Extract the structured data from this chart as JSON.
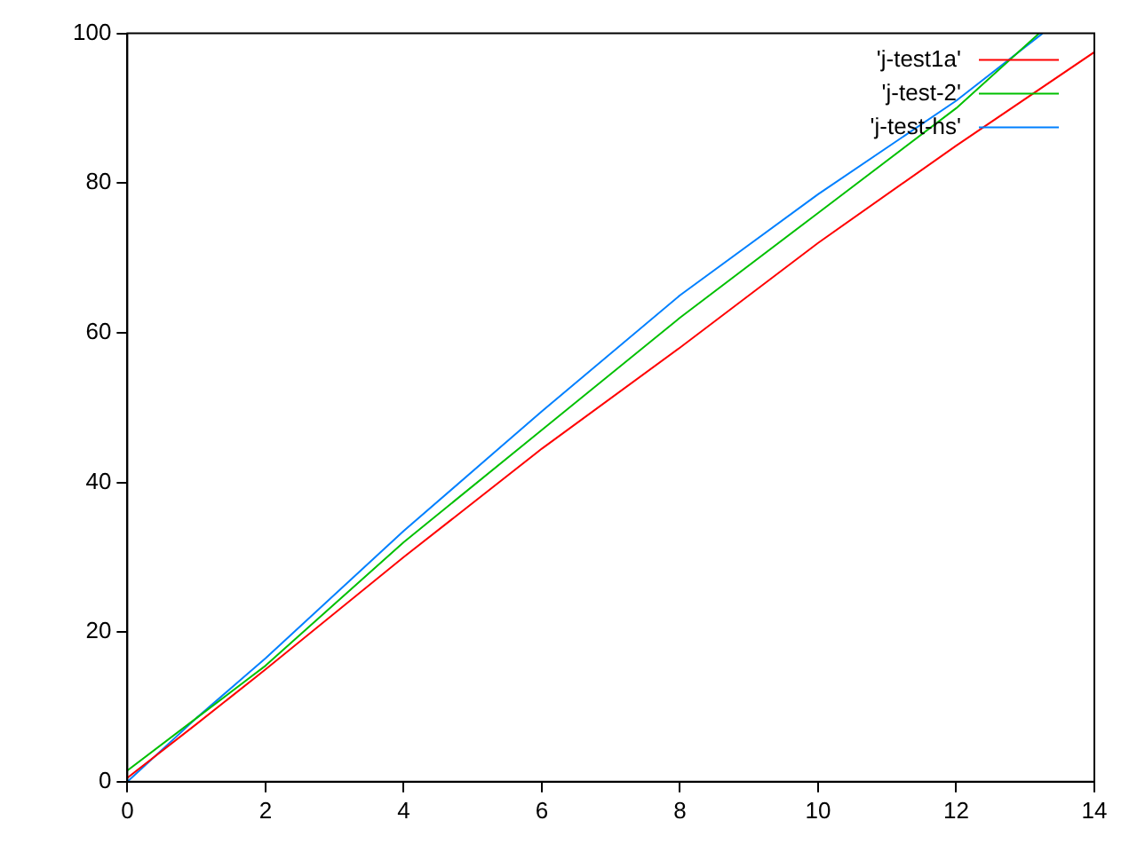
{
  "chart_data": {
    "type": "line",
    "xlim": [
      0,
      14
    ],
    "ylim": [
      0,
      100
    ],
    "xticks": [
      0,
      2,
      4,
      6,
      8,
      10,
      12,
      14
    ],
    "yticks": [
      0,
      20,
      40,
      60,
      80,
      100
    ],
    "grid": false,
    "legend": "top right",
    "marker": "none",
    "line_style": "solid",
    "series": [
      {
        "name": "'j-test1a'",
        "color": "#ff0000",
        "x": [
          0,
          1,
          2,
          4,
          6,
          8,
          10,
          12,
          14
        ],
        "values": [
          0.5,
          7.7,
          15,
          30,
          44.5,
          58,
          72,
          85,
          97.5
        ]
      },
      {
        "name": "'j-test-2'",
        "color": "#00c000",
        "x": [
          0,
          1,
          2,
          4,
          6,
          8,
          10,
          12,
          13.2
        ],
        "values": [
          1.5,
          8.5,
          15.5,
          32,
          47,
          62,
          76,
          90,
          100
        ]
      },
      {
        "name": "'j-test-hs'",
        "color": "#0080ff",
        "x": [
          0,
          1,
          2,
          4,
          6,
          8,
          10,
          12,
          13.25
        ],
        "values": [
          0,
          8.5,
          16.5,
          33.5,
          49.5,
          65,
          78.5,
          91,
          100
        ]
      }
    ]
  }
}
